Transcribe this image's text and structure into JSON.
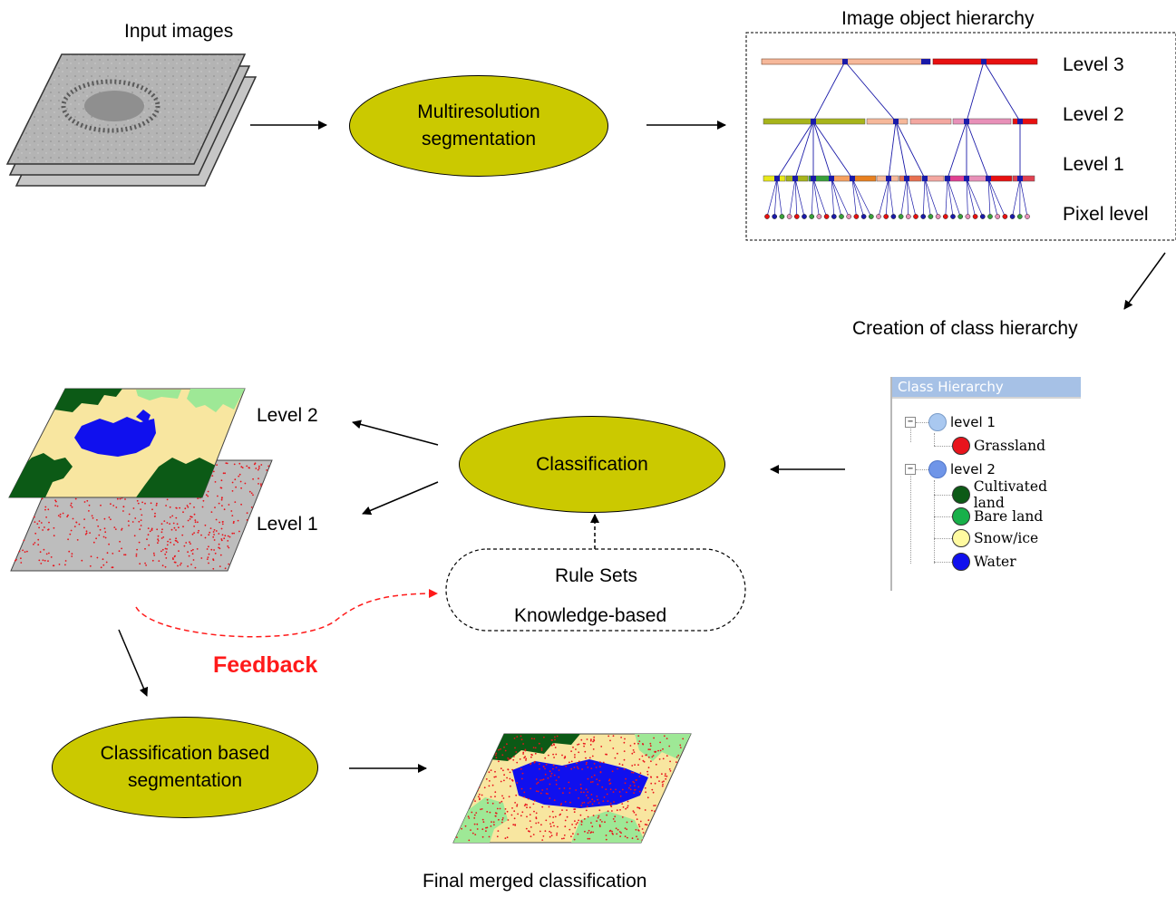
{
  "input_images": {
    "label": "Input images"
  },
  "nodes": {
    "multires": {
      "line1": "Multiresolution",
      "line2": "segmentation"
    },
    "classification": {
      "label": "Classification"
    },
    "class_seg": {
      "line1": "Classification based",
      "line2": "segmentation"
    },
    "rules": {
      "line1": "Rule Sets",
      "line2": "Knowledge-based"
    }
  },
  "hierarchy": {
    "title": "Image object hierarchy",
    "levels": [
      "Level 3",
      "Level 2",
      "Level 1",
      "Pixel level"
    ]
  },
  "creation_label": "Creation of class hierarchy",
  "class_hierarchy": {
    "title": "Class Hierarchy",
    "groups": [
      {
        "name": "level 1",
        "color": "#a9c8f0",
        "children": [
          {
            "name": "Grassland",
            "color": "#e8141c"
          }
        ]
      },
      {
        "name": "level 2",
        "color": "#6f95e8",
        "children": [
          {
            "name": "Cultivated land",
            "color": "#0c5a16"
          },
          {
            "name": "Bare land",
            "color": "#18b04a"
          },
          {
            "name": "Snow/ice",
            "color": "#fffaa0"
          },
          {
            "name": "Water",
            "color": "#1010ee"
          }
        ]
      }
    ]
  },
  "map_levels": {
    "upper": "Level 2",
    "lower": "Level 1"
  },
  "feedback": "Feedback",
  "final_label": "Final merged classification",
  "colors": {
    "ellipse_fill": "#cbc900",
    "feedback": "#ff1a1a",
    "cultivated": "#0c5a16",
    "bare": "#9ee896",
    "snow": "#f8e6a0",
    "water": "#1010ee",
    "grass_points": "#e8141c"
  }
}
